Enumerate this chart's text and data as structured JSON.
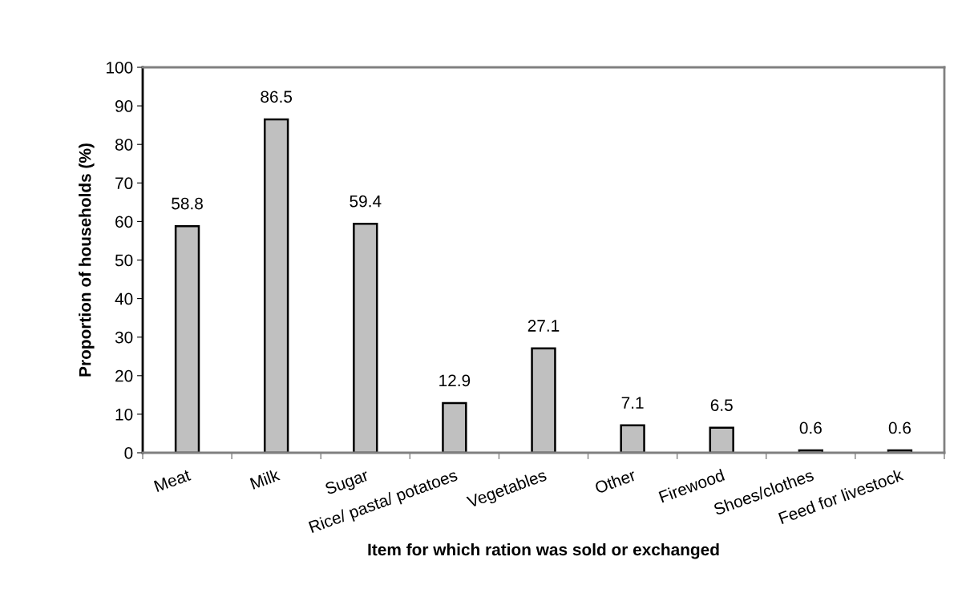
{
  "chart_data": {
    "type": "bar",
    "xlabel": "Item for which ration was sold or exchanged",
    "ylabel": "Proportion of households (%)",
    "categories": [
      "Meat",
      "Milk",
      "Sugar",
      "Rice/ pasta/ potatoes",
      "Vegetables",
      "Other",
      "Firewood",
      "Shoes/clothes",
      "Feed for livestock"
    ],
    "values": [
      58.8,
      86.5,
      59.4,
      12.9,
      27.1,
      7.1,
      6.5,
      0.6,
      0.6
    ],
    "color": "#c0c0c0",
    "ylim": [
      0,
      100
    ],
    "yticks": [
      0,
      10,
      20,
      30,
      40,
      50,
      60,
      70,
      80,
      90,
      100
    ],
    "grid": false,
    "data_labels": true,
    "legend": false
  }
}
